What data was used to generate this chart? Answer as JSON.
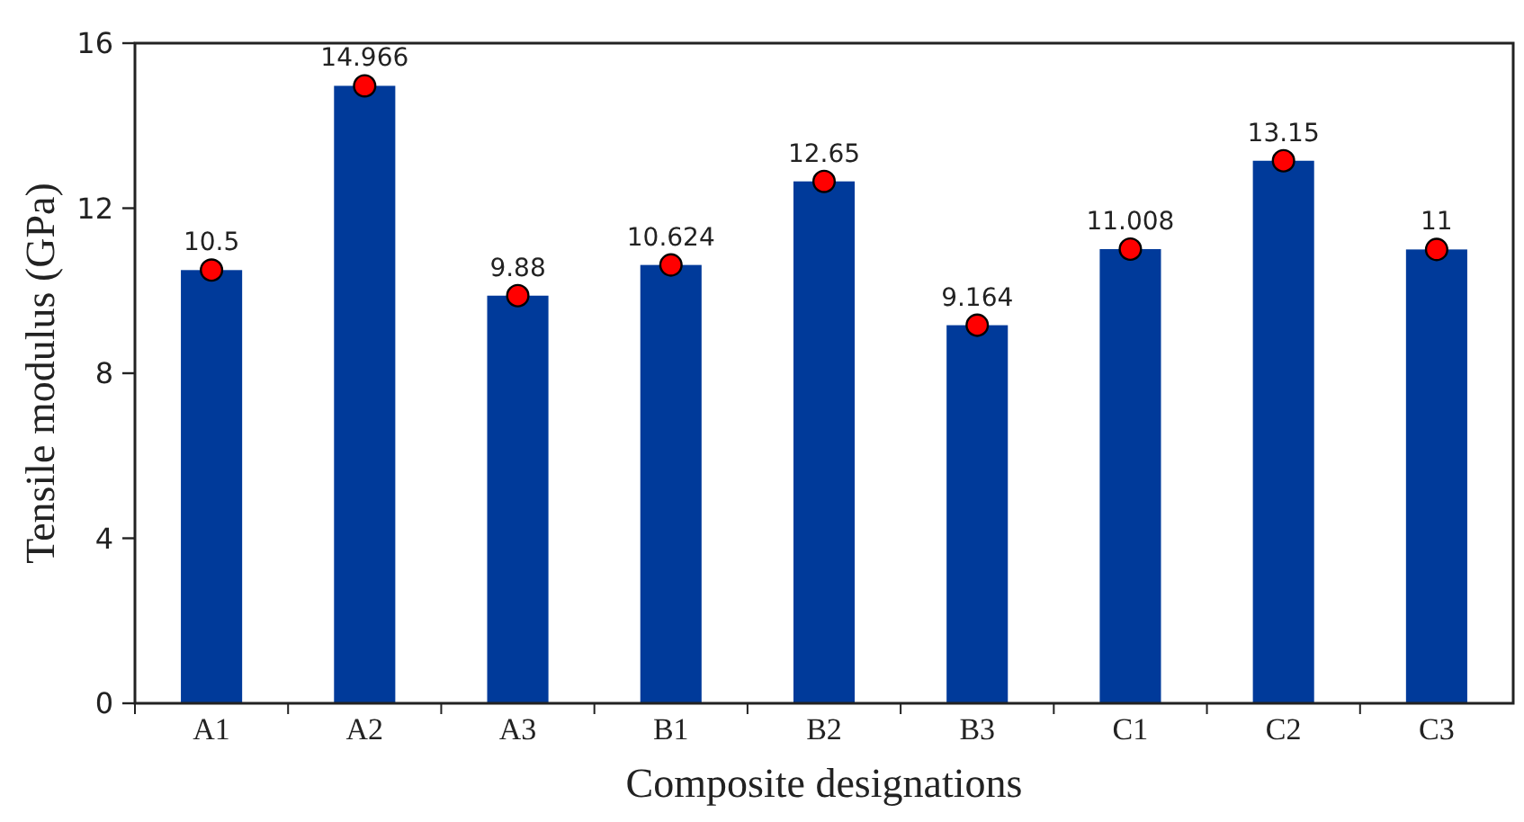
{
  "chart_data": {
    "type": "bar",
    "xlabel": "Composite designations",
    "ylabel": "Tensile modulus (GPa)",
    "categories": [
      "A1",
      "A2",
      "A3",
      "B1",
      "B2",
      "B3",
      "C1",
      "C2",
      "C3"
    ],
    "series": [
      {
        "color": "#003a9a",
        "values": [
          10.5,
          14.966,
          9.88,
          10.624,
          12.65,
          9.164,
          11.008,
          13.15,
          11
        ],
        "value_labels": [
          "10.5",
          "14.966",
          "9.88",
          "10.624",
          "12.65",
          "9.164",
          "11.008",
          "13.15",
          "11"
        ]
      },
      {
        "type": "scatter",
        "color": "#ff0000",
        "marker": "circle",
        "x": [
          "A1",
          "A2",
          "A3",
          "B1",
          "B2",
          "B3",
          "C1",
          "C2",
          "C3"
        ],
        "values": [
          10.5,
          14.966,
          9.88,
          10.624,
          12.65,
          9.164,
          11.008,
          13.15,
          11
        ]
      }
    ],
    "ylim": [
      0,
      16
    ],
    "yticks": [
      0,
      4,
      8,
      12,
      16
    ],
    "grid": false
  }
}
